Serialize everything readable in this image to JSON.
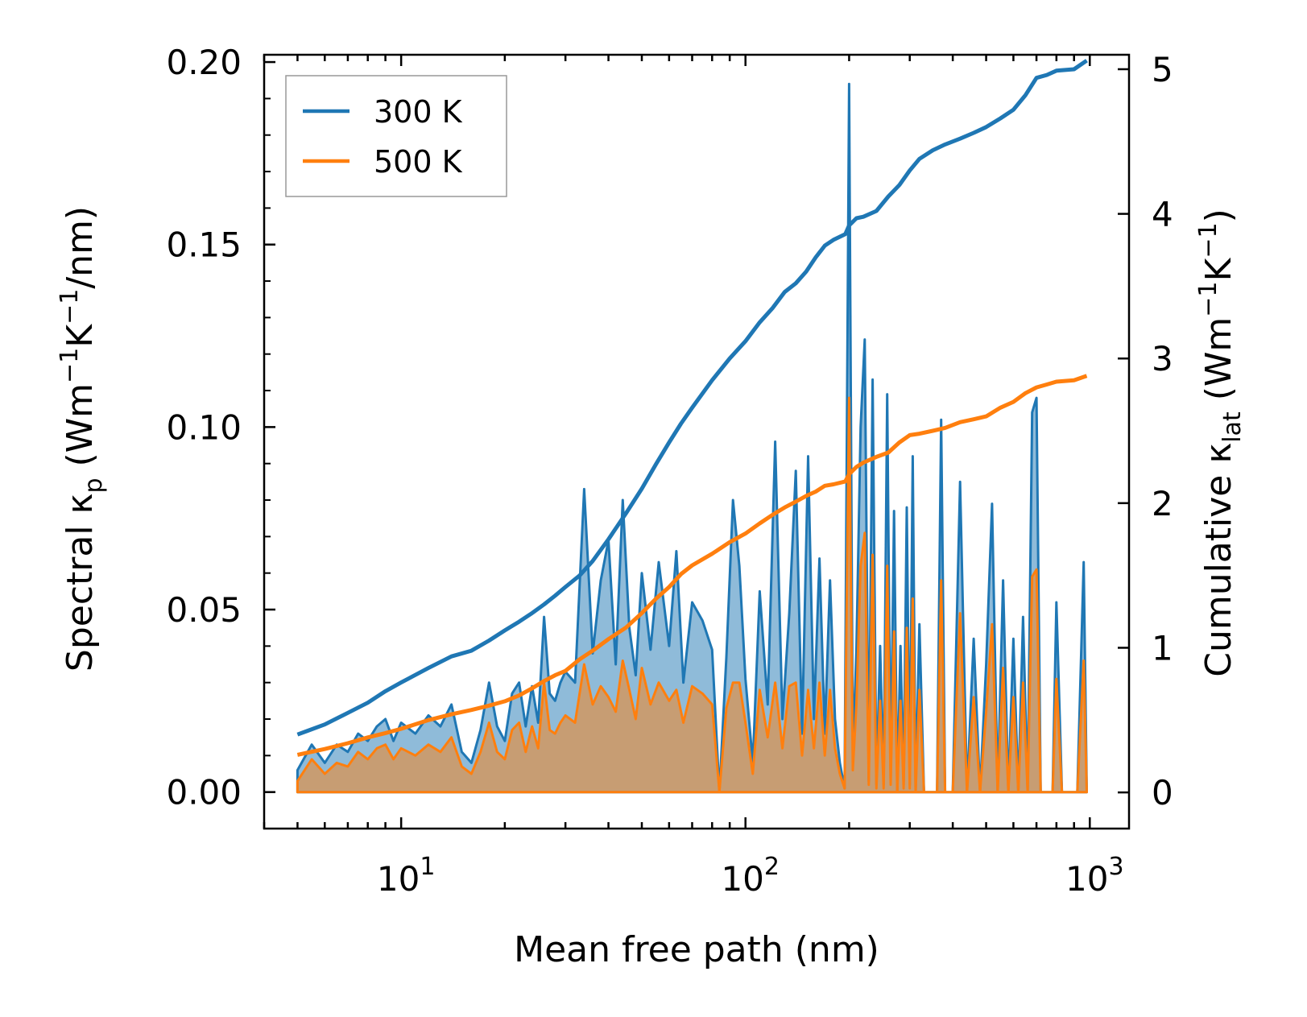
{
  "chart_data": {
    "type": "line",
    "title": "",
    "xlabel": "Mean free path (nm)",
    "xscale": "log",
    "xlim": [
      4,
      1300
    ],
    "xticks": [
      10,
      100,
      1000
    ],
    "xtick_labels": [
      {
        "base": "10",
        "exp": "1"
      },
      {
        "base": "10",
        "exp": "2"
      },
      {
        "base": "10",
        "exp": "3"
      }
    ],
    "ylabel_left": {
      "main": "Spectral κ",
      "sub": "p",
      "unit_open": " (Wm",
      "sup1": "−1",
      "mid": "K",
      "sup2": "−1",
      "unit_close": "/nm)"
    },
    "ylim_left": [
      -0.01,
      0.202
    ],
    "yticks_left": [
      "0.00",
      "0.05",
      "0.10",
      "0.15",
      "0.20"
    ],
    "ylabel_right": {
      "main": "Cumulative κ",
      "sub": "lat",
      "unit_open": " (Wm",
      "sup1": "−1",
      "mid": "K",
      "sup2": "−1",
      "unit_close": ")"
    },
    "ylim_right": [
      -0.25,
      5.1
    ],
    "yticks_right": [
      "0",
      "1",
      "2",
      "3",
      "4",
      "5"
    ],
    "legend": {
      "position": "top-left",
      "entries": [
        "300 K",
        "500 K"
      ]
    },
    "colors": {
      "300 K": "#1f77b4",
      "500 K": "#ff7f0e"
    },
    "spectral_series": [
      {
        "name": "300 K",
        "axis": "left",
        "fill": true,
        "x": [
          5,
          5.5,
          6,
          6.5,
          7,
          7.5,
          8,
          8.5,
          9,
          9.5,
          10,
          11,
          12,
          13,
          14,
          15,
          16,
          17,
          18,
          19,
          20,
          21,
          22,
          23,
          24,
          25,
          26,
          27,
          28,
          29,
          30,
          32,
          34,
          36,
          38,
          40,
          42,
          44,
          46,
          48,
          50,
          53,
          56,
          60,
          63,
          66,
          70,
          75,
          80,
          84,
          88,
          92,
          96,
          100,
          105,
          110,
          116,
          122,
          128,
          134,
          140,
          146,
          152,
          158,
          164,
          170,
          176,
          182,
          188,
          194,
          200,
          205,
          210,
          216,
          222,
          228,
          234,
          240,
          246,
          252,
          258,
          264,
          270,
          276,
          282,
          288,
          294,
          300,
          306,
          312,
          320,
          330,
          340,
          350,
          360,
          370,
          380,
          390,
          400,
          420,
          440,
          460,
          480,
          500,
          520,
          540,
          560,
          580,
          600,
          620,
          640,
          660,
          680,
          700,
          720,
          740,
          760,
          780,
          800,
          830,
          860,
          890,
          920,
          960,
          980
        ],
        "y": [
          0.006,
          0.013,
          0.008,
          0.013,
          0.011,
          0.016,
          0.014,
          0.018,
          0.02,
          0.014,
          0.019,
          0.016,
          0.021,
          0.018,
          0.024,
          0.011,
          0.008,
          0.017,
          0.03,
          0.018,
          0.014,
          0.027,
          0.03,
          0.018,
          0.029,
          0.019,
          0.048,
          0.027,
          0.025,
          0.03,
          0.033,
          0.03,
          0.083,
          0.038,
          0.058,
          0.069,
          0.035,
          0.08,
          0.045,
          0.032,
          0.06,
          0.039,
          0.063,
          0.04,
          0.066,
          0.03,
          0.052,
          0.047,
          0.039,
          0.0,
          0.037,
          0.08,
          0.062,
          0.031,
          0.008,
          0.055,
          0.024,
          0.096,
          0.02,
          0.049,
          0.088,
          0.016,
          0.092,
          0.02,
          0.064,
          0.016,
          0.058,
          0.02,
          0.008,
          0.001,
          0.194,
          0.01,
          0.039,
          0.1,
          0.124,
          0.003,
          0.113,
          0.002,
          0.04,
          0.002,
          0.109,
          0.003,
          0.077,
          0.0,
          0.04,
          0.002,
          0.078,
          0.002,
          0.092,
          0.0,
          0.046,
          0.0,
          0.0,
          0.0,
          0.0,
          0.102,
          0.0,
          0.0,
          0.0,
          0.085,
          0.0,
          0.042,
          0.0,
          0.035,
          0.079,
          0.0,
          0.058,
          0.0,
          0.042,
          0.0,
          0.048,
          0.0,
          0.104,
          0.108,
          0.0,
          0.0,
          0.0,
          0.0,
          0.052,
          0.0,
          0.0,
          0.0,
          0.0,
          0.063,
          0.0
        ]
      },
      {
        "name": "500 K",
        "axis": "left",
        "fill": true,
        "x": [
          5,
          5.5,
          6,
          6.5,
          7,
          7.5,
          8,
          8.5,
          9,
          9.5,
          10,
          11,
          12,
          13,
          14,
          15,
          16,
          17,
          18,
          19,
          20,
          21,
          22,
          23,
          24,
          25,
          26,
          27,
          28,
          29,
          30,
          32,
          34,
          36,
          38,
          40,
          42,
          44,
          46,
          48,
          50,
          53,
          56,
          60,
          63,
          66,
          70,
          75,
          80,
          84,
          88,
          92,
          96,
          100,
          105,
          110,
          116,
          122,
          128,
          134,
          140,
          146,
          152,
          158,
          164,
          170,
          176,
          182,
          188,
          194,
          200,
          205,
          210,
          216,
          222,
          228,
          234,
          240,
          246,
          252,
          258,
          264,
          270,
          276,
          282,
          288,
          294,
          300,
          306,
          312,
          320,
          330,
          340,
          350,
          360,
          370,
          380,
          390,
          400,
          420,
          440,
          460,
          480,
          500,
          520,
          540,
          560,
          580,
          600,
          620,
          640,
          660,
          680,
          700,
          720,
          740,
          760,
          780,
          800,
          830,
          860,
          890,
          920,
          960,
          980
        ],
        "y": [
          0.003,
          0.009,
          0.005,
          0.008,
          0.007,
          0.011,
          0.009,
          0.012,
          0.013,
          0.009,
          0.012,
          0.01,
          0.013,
          0.011,
          0.015,
          0.007,
          0.005,
          0.011,
          0.019,
          0.011,
          0.009,
          0.017,
          0.019,
          0.011,
          0.018,
          0.012,
          0.03,
          0.017,
          0.016,
          0.019,
          0.021,
          0.019,
          0.035,
          0.024,
          0.029,
          0.026,
          0.022,
          0.036,
          0.028,
          0.02,
          0.034,
          0.024,
          0.03,
          0.025,
          0.028,
          0.019,
          0.029,
          0.027,
          0.024,
          0.0,
          0.023,
          0.03,
          0.03,
          0.019,
          0.005,
          0.028,
          0.015,
          0.03,
          0.012,
          0.029,
          0.03,
          0.01,
          0.028,
          0.012,
          0.03,
          0.01,
          0.028,
          0.012,
          0.005,
          0.001,
          0.108,
          0.006,
          0.024,
          0.062,
          0.071,
          0.002,
          0.065,
          0.001,
          0.025,
          0.001,
          0.062,
          0.002,
          0.044,
          0.0,
          0.025,
          0.001,
          0.045,
          0.001,
          0.053,
          0.0,
          0.028,
          0.0,
          0.0,
          0.0,
          0.0,
          0.058,
          0.0,
          0.0,
          0.0,
          0.049,
          0.0,
          0.026,
          0.0,
          0.022,
          0.046,
          0.0,
          0.034,
          0.0,
          0.026,
          0.0,
          0.03,
          0.0,
          0.059,
          0.061,
          0.0,
          0.0,
          0.0,
          0.0,
          0.031,
          0.0,
          0.0,
          0.0,
          0.0,
          0.036,
          0.0
        ]
      }
    ],
    "cumulative_series": [
      {
        "name": "300 K",
        "axis": "right",
        "x": [
          5,
          6,
          7,
          8,
          9,
          10,
          12,
          14,
          16,
          18,
          20,
          22,
          24,
          26,
          28,
          30,
          33,
          36,
          40,
          45,
          50,
          55,
          60,
          65,
          70,
          80,
          90,
          100,
          110,
          120,
          130,
          140,
          150,
          160,
          170,
          180,
          195,
          200,
          210,
          220,
          240,
          260,
          280,
          300,
          320,
          350,
          380,
          420,
          460,
          500,
          550,
          600,
          650,
          700,
          750,
          800,
          900,
          980
        ],
        "y": [
          0.4,
          0.47,
          0.55,
          0.62,
          0.7,
          0.76,
          0.86,
          0.94,
          0.98,
          1.05,
          1.12,
          1.18,
          1.24,
          1.3,
          1.36,
          1.42,
          1.5,
          1.6,
          1.75,
          1.93,
          2.1,
          2.27,
          2.42,
          2.55,
          2.66,
          2.85,
          3.0,
          3.12,
          3.25,
          3.35,
          3.46,
          3.52,
          3.6,
          3.7,
          3.78,
          3.82,
          3.86,
          3.92,
          3.97,
          3.98,
          4.02,
          4.12,
          4.2,
          4.3,
          4.38,
          4.44,
          4.48,
          4.52,
          4.56,
          4.6,
          4.66,
          4.72,
          4.82,
          4.94,
          4.96,
          4.99,
          5.0,
          5.06
        ]
      },
      {
        "name": "500 K",
        "axis": "right",
        "x": [
          5,
          6,
          7,
          8,
          9,
          10,
          12,
          14,
          16,
          18,
          20,
          22,
          24,
          26,
          28,
          30,
          33,
          36,
          40,
          45,
          50,
          55,
          60,
          65,
          70,
          80,
          90,
          100,
          110,
          120,
          130,
          140,
          150,
          160,
          170,
          180,
          195,
          200,
          210,
          220,
          240,
          260,
          280,
          300,
          320,
          350,
          380,
          420,
          460,
          500,
          550,
          600,
          650,
          700,
          750,
          800,
          900,
          980
        ],
        "y": [
          0.26,
          0.3,
          0.34,
          0.38,
          0.41,
          0.44,
          0.5,
          0.54,
          0.57,
          0.6,
          0.63,
          0.67,
          0.72,
          0.77,
          0.81,
          0.84,
          0.92,
          0.98,
          1.06,
          1.14,
          1.24,
          1.34,
          1.42,
          1.51,
          1.57,
          1.65,
          1.73,
          1.79,
          1.86,
          1.92,
          1.97,
          2.01,
          2.05,
          2.08,
          2.12,
          2.13,
          2.15,
          2.2,
          2.25,
          2.28,
          2.32,
          2.35,
          2.42,
          2.47,
          2.48,
          2.5,
          2.52,
          2.56,
          2.58,
          2.6,
          2.66,
          2.7,
          2.76,
          2.8,
          2.82,
          2.84,
          2.85,
          2.88
        ]
      }
    ]
  }
}
